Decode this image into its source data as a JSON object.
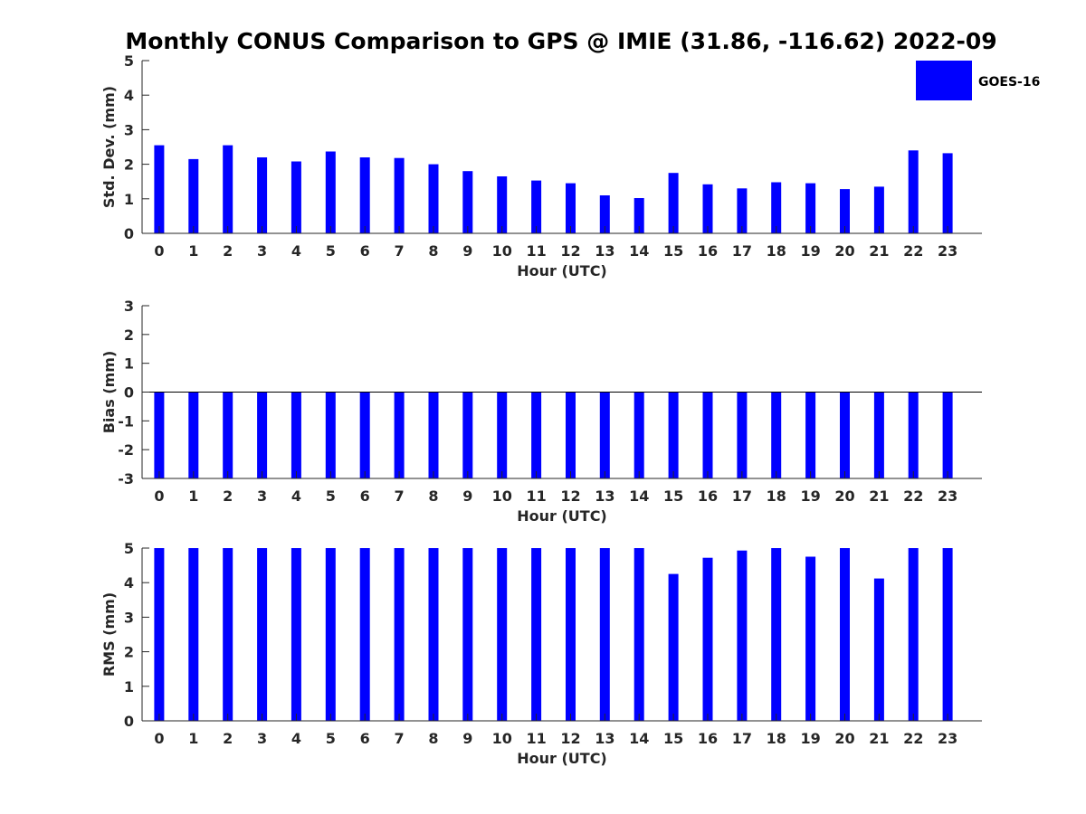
{
  "title": "Monthly CONUS Comparison to GPS @ IMIE (31.86, -116.62) 2022-09",
  "legend": {
    "label": "GOES-16",
    "color": "#0000ff",
    "position": "top-right"
  },
  "chart_data": [
    {
      "type": "bar",
      "xlabel": "Hour (UTC)",
      "ylabel": "Std. Dev. (mm)",
      "ylim": [
        0,
        5
      ],
      "yticks": [
        "0",
        "1",
        "2",
        "3",
        "4",
        "5"
      ],
      "categories": [
        "0",
        "1",
        "2",
        "3",
        "4",
        "5",
        "6",
        "7",
        "8",
        "9",
        "10",
        "11",
        "12",
        "13",
        "14",
        "15",
        "16",
        "17",
        "18",
        "19",
        "20",
        "21",
        "22",
        "23"
      ],
      "series": [
        {
          "name": "GOES-16",
          "values": [
            2.55,
            2.15,
            2.55,
            2.2,
            2.08,
            2.37,
            2.2,
            2.18,
            2.0,
            1.8,
            1.65,
            1.53,
            1.45,
            1.1,
            1.02,
            1.75,
            1.42,
            1.3,
            1.48,
            1.45,
            1.28,
            1.35,
            2.4,
            2.32
          ]
        }
      ],
      "grid": false
    },
    {
      "type": "bar",
      "xlabel": "Hour (UTC)",
      "ylabel": "Bias (mm)",
      "ylim": [
        -3,
        3
      ],
      "yticks": [
        "-3",
        "-2",
        "-1",
        "0",
        "1",
        "2",
        "3"
      ],
      "categories": [
        "0",
        "1",
        "2",
        "3",
        "4",
        "5",
        "6",
        "7",
        "8",
        "9",
        "10",
        "11",
        "12",
        "13",
        "14",
        "15",
        "16",
        "17",
        "18",
        "19",
        "20",
        "21",
        "22",
        "23"
      ],
      "series": [
        {
          "name": "GOES-16",
          "values": [
            -3,
            -3,
            -3,
            -3,
            -3,
            -3,
            -3,
            -3,
            -3,
            -3,
            -3,
            -3,
            -3,
            -3,
            -3,
            -3,
            -3,
            -3,
            -3,
            -3,
            -3,
            -3,
            -3,
            -3
          ]
        }
      ],
      "grid": false
    },
    {
      "type": "bar",
      "xlabel": "Hour (UTC)",
      "ylabel": "RMS (mm)",
      "ylim": [
        0,
        5
      ],
      "yticks": [
        "0",
        "1",
        "2",
        "3",
        "4",
        "5"
      ],
      "categories": [
        "0",
        "1",
        "2",
        "3",
        "4",
        "5",
        "6",
        "7",
        "8",
        "9",
        "10",
        "11",
        "12",
        "13",
        "14",
        "15",
        "16",
        "17",
        "18",
        "19",
        "20",
        "21",
        "22",
        "23"
      ],
      "series": [
        {
          "name": "GOES-16",
          "values": [
            5,
            5,
            5,
            5,
            5,
            5,
            5,
            5,
            5,
            5,
            5,
            5,
            5,
            5,
            5,
            4.25,
            4.72,
            4.93,
            5,
            4.75,
            5,
            4.12,
            5,
            5
          ]
        }
      ],
      "grid": false
    }
  ]
}
